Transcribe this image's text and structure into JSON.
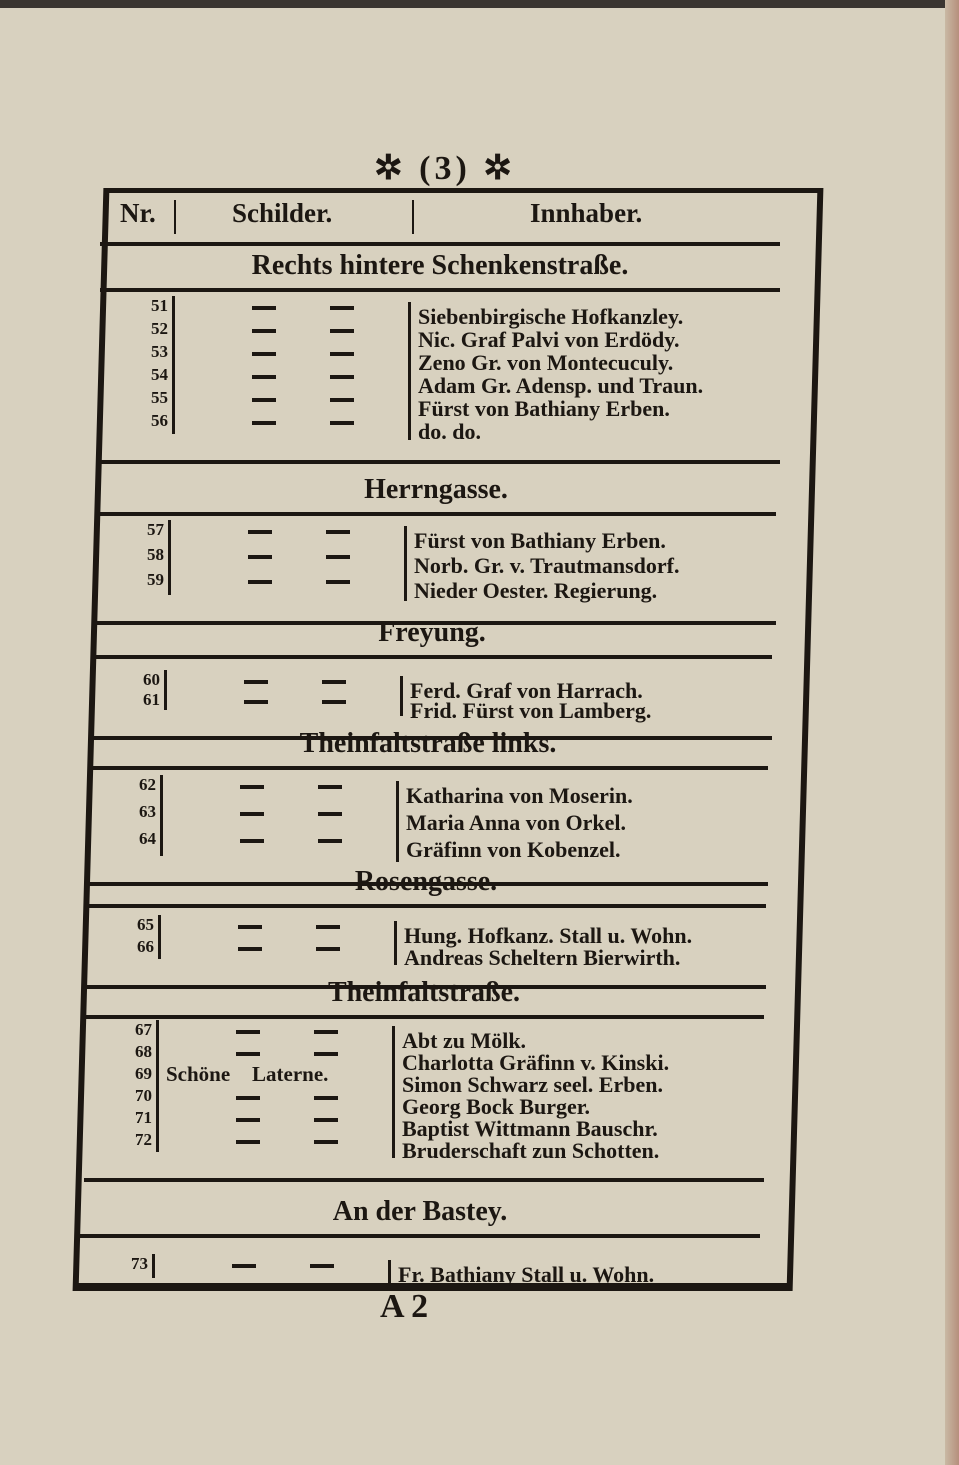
{
  "page": {
    "number": "(3)",
    "ornament_left": "✲",
    "ornament_right": "✲",
    "signature": "A 2"
  },
  "header": {
    "nr": "Nr.",
    "schilder": "Schilder.",
    "innhaber": "Innhaber."
  },
  "sections": [
    {
      "title": "Rechts hintere Schenkenstraße.",
      "rows": [
        {
          "nr": "51",
          "a": "—",
          "b": "—",
          "holder": "Siebenbirgische Hofkanzley."
        },
        {
          "nr": "52",
          "a": "—",
          "b": "—",
          "holder": "Nic. Graf Palvi von Erdödy."
        },
        {
          "nr": "53",
          "a": "—",
          "b": "—",
          "holder": "Zeno Gr. von Montecuculy."
        },
        {
          "nr": "54",
          "a": "—",
          "b": "—",
          "holder": "Adam Gr. Adensp. und Traun."
        },
        {
          "nr": "55",
          "a": "—",
          "b": "—",
          "holder": "Fürst von Bathiany Erben."
        },
        {
          "nr": "56",
          "a": "—",
          "b": "—",
          "holder": "do.        do."
        }
      ]
    },
    {
      "title": "Herrngasse.",
      "rows": [
        {
          "nr": "57",
          "a": "—",
          "b": "—",
          "holder": "Fürst von Bathiany Erben."
        },
        {
          "nr": "58",
          "a": "—",
          "b": "—",
          "holder": "Norb. Gr. v. Trautmansdorf."
        },
        {
          "nr": "59",
          "a": "—",
          "b": "—",
          "holder": "Nieder Oester. Regierung."
        }
      ]
    },
    {
      "title": "Freyung.",
      "rows": [
        {
          "nr": "60",
          "a": "—",
          "b": "—",
          "holder": "Ferd. Graf von Harrach."
        },
        {
          "nr": "61",
          "a": "—",
          "b": "—",
          "holder": "Frid. Fürst von Lamberg."
        }
      ]
    },
    {
      "title": "Theinfaltstraße links.",
      "rows": [
        {
          "nr": "62",
          "a": "—",
          "b": "—",
          "holder": "Katharina von Moserin."
        },
        {
          "nr": "63",
          "a": "—",
          "b": "—",
          "holder": "Maria Anna von Orkel."
        },
        {
          "nr": "64",
          "a": "—",
          "b": "—",
          "holder": "Gräfinn von Kobenzel."
        }
      ]
    },
    {
      "title": "Rosengasse.",
      "rows": [
        {
          "nr": "65",
          "a": "—",
          "b": "—",
          "holder": "Hung. Hofkanz. Stall u. Wohn."
        },
        {
          "nr": "66",
          "a": "—",
          "b": "—",
          "holder": "Andreas Scheltern Bierwirth."
        }
      ]
    },
    {
      "title": "Theinfaltstraße.",
      "rows": [
        {
          "nr": "67",
          "a": "—",
          "b": "—",
          "holder": "Abt zu Mölk."
        },
        {
          "nr": "68",
          "a": "—",
          "b": "—",
          "holder": "Charlotta Gräfinn v. Kinski."
        },
        {
          "nr": "69",
          "a": "Schöne",
          "b": "Laterne.",
          "holder": "Simon Schwarz seel. Erben."
        },
        {
          "nr": "70",
          "a": "—",
          "b": "—",
          "holder": "Georg Bock Burger."
        },
        {
          "nr": "71",
          "a": "—",
          "b": "—",
          "holder": "Baptist Wittmann Bauschr."
        },
        {
          "nr": "72",
          "a": "—",
          "b": "—",
          "holder": "Bruderschaft zun Schotten."
        }
      ]
    },
    {
      "title": "An der Bastey.",
      "rows": [
        {
          "nr": "73",
          "a": "—",
          "b": "—",
          "holder": "Fr. Bathiany Stall u. Wohn."
        }
      ]
    }
  ]
}
